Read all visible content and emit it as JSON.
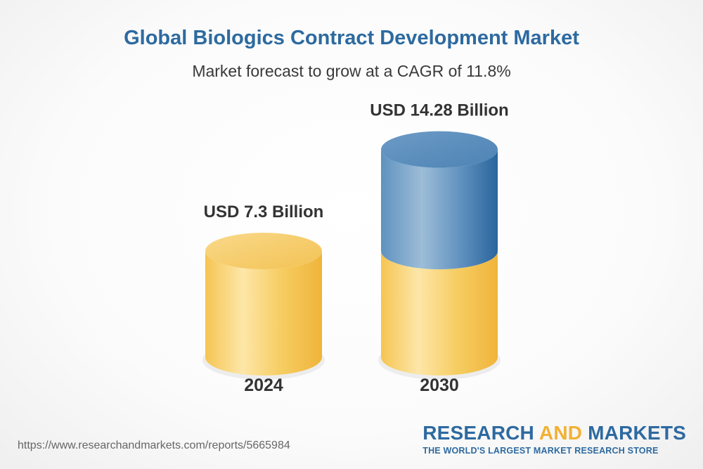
{
  "header": {
    "title": "Global Biologics Contract Development Market",
    "subtitle": "Market forecast to grow at a CAGR of 11.8%"
  },
  "chart_data": {
    "type": "bar",
    "style": "3d-cylinder",
    "categories": [
      "2024",
      "2030"
    ],
    "values": [
      7.3,
      14.28
    ],
    "data_labels": [
      "USD 7.3 Billion",
      "USD 14.28 Billion"
    ],
    "unit": "USD Billion",
    "colors": {
      "base": "#f4c04a",
      "growth": "#2d6aa0"
    }
  },
  "footer": {
    "url": "https://www.researchandmarkets.com/reports/5665984",
    "brand_part1": "RESEARCH ",
    "brand_part2": "AND",
    "brand_part3": " MARKETS",
    "tagline": "THE WORLD'S LARGEST MARKET RESEARCH STORE"
  }
}
